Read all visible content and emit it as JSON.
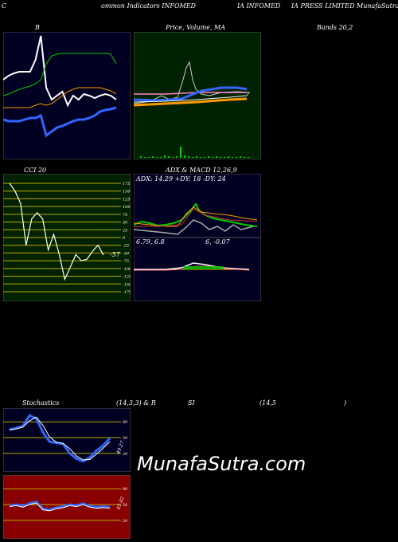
{
  "header": {
    "c1": "C",
    "c2": "ommon  Indicators INFOMED",
    "c3": "IA INFOMED",
    "c4": "IA PRESS LIMITED MunafaSutra.com"
  },
  "labels": {
    "b": "B",
    "price": "Price,  Volume,  MA",
    "bands": "Bands 20,2",
    "cci": "CCI 20",
    "adx": "ADX  & MACD 12,26,9",
    "adx_values": "ADX: 14.29  +DY: 18  -DY: 24",
    "macd_values_a": "6.79,  6.8",
    "macd_values_b": "6,  -0.07",
    "cci_value": "-57",
    "stoch_label": "Stochastics",
    "stoch_params": "(14,3,3) & R",
    "rsi_label": "SI",
    "rsi_params": "(14,5",
    "rsi_close": ")",
    "stoch_value": "49.27",
    "rsi_value": "45.02"
  },
  "watermark": "MunafaSutra.com",
  "colors": {
    "panel_dark": "#000022",
    "price_bg": "#002200",
    "cci_bg": "#002200",
    "rsi_bg": "#880000",
    "white": "#ffffff",
    "green": "#00cc00",
    "blue": "#3366ff",
    "orange": "#ff9900"
  },
  "chart_data": [
    {
      "type": "line",
      "panel": "bollinger",
      "series": [
        {
          "values": [
            60,
            55,
            52,
            50,
            50,
            50,
            35,
            5,
            70,
            85,
            80,
            75,
            92,
            80,
            85,
            78,
            80,
            83,
            80,
            78,
            80,
            85
          ]
        },
        {
          "values": [
            80,
            78,
            75,
            72,
            70,
            68,
            65,
            60,
            40,
            30,
            28,
            27,
            27,
            27,
            27,
            27,
            27,
            27,
            27,
            27,
            28,
            40
          ]
        },
        {
          "values": [
            110,
            112,
            112,
            112,
            110,
            108,
            108,
            105,
            130,
            125,
            120,
            118,
            115,
            112,
            110,
            110,
            108,
            105,
            100,
            98,
            97,
            95
          ]
        },
        {
          "values": [
            95,
            95,
            95,
            95,
            95,
            95,
            92,
            90,
            92,
            90,
            85,
            80,
            75,
            72,
            70,
            70,
            70,
            70,
            70,
            72,
            74,
            78
          ]
        }
      ]
    },
    {
      "type": "bar",
      "panel": "price-volume",
      "values": [
        2,
        1,
        1,
        2,
        1,
        1,
        3,
        2,
        1,
        2,
        14,
        3,
        2,
        1,
        2,
        1,
        1,
        2,
        1,
        2,
        1,
        1,
        2,
        1,
        1,
        2,
        1,
        1
      ]
    },
    {
      "type": "line",
      "panel": "cci",
      "yticks": [
        175,
        150,
        125,
        100,
        75,
        50,
        25,
        0,
        -25,
        -50,
        -75,
        -100,
        -125,
        -150,
        -175
      ],
      "values": [
        175,
        150,
        110,
        -25,
        60,
        80,
        60,
        -40,
        10,
        -55,
        -135,
        -95,
        -55,
        -75,
        -70,
        -45,
        -25,
        -57
      ]
    },
    {
      "type": "line",
      "panel": "stochastics",
      "yticks": [
        80,
        50,
        20
      ],
      "values": [
        65,
        68,
        72,
        92,
        86,
        60,
        42,
        40,
        38,
        20,
        10,
        5,
        12,
        25,
        35,
        49
      ]
    },
    {
      "type": "line",
      "panel": "rsi",
      "yticks": [
        80,
        50,
        20
      ],
      "values": [
        48,
        50,
        47,
        52,
        55,
        42,
        40,
        44,
        46,
        50,
        48,
        52,
        47,
        45,
        46,
        45
      ]
    }
  ]
}
